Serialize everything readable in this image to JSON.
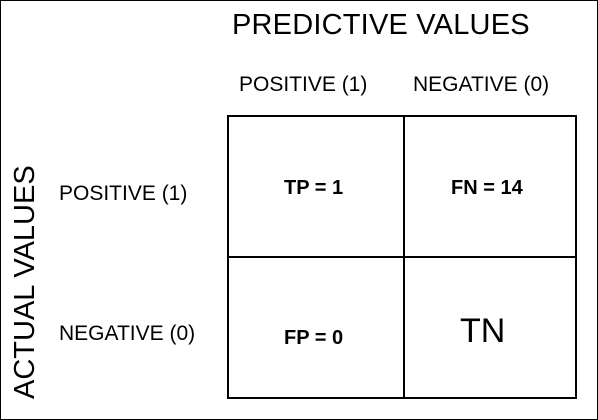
{
  "diagram": {
    "title": "PREDICTIVE VALUES",
    "side_title": "ACTUAL VALUES",
    "columns": [
      "POSITIVE (1)",
      "NEGATIVE (0)"
    ],
    "rows": [
      "POSITIVE (1)",
      "NEGATIVE (0)"
    ],
    "cells": {
      "tp": "TP = 1",
      "fn": "FN = 14",
      "fp": "FP = 0",
      "tn": "TN"
    }
  }
}
